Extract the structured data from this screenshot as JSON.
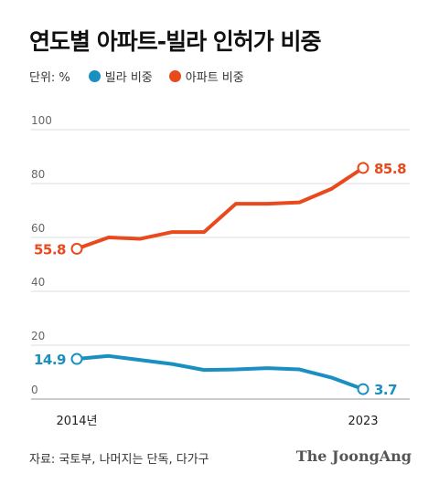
{
  "title": "연도별 아파트-빌라 인허가 비중",
  "unit_label": "단위: %",
  "source": "자료: 국토부, 나머지는 단독, 다가구",
  "brand": "The JoongAng",
  "colors": {
    "villa": "#1a8fc1",
    "apartment": "#e8491d"
  },
  "chart_data": {
    "type": "line",
    "x": [
      2014,
      2015,
      2016,
      2017,
      2018,
      2019,
      2020,
      2021,
      2022,
      2023
    ],
    "x_tick_labels": [
      {
        "x": 2014,
        "label": "2014년"
      },
      {
        "x": 2023,
        "label": "2023"
      }
    ],
    "yticks": [
      0,
      20,
      40,
      60,
      80,
      100
    ],
    "ylim": [
      0,
      100
    ],
    "xlabel": "",
    "ylabel": "",
    "legend_position": "top-left",
    "grid": true,
    "series": [
      {
        "name": "빌라 비중",
        "key": "villa",
        "values": [
          14.9,
          16.0,
          14.5,
          13.0,
          10.8,
          11.0,
          11.5,
          11.0,
          8.0,
          3.7
        ],
        "end_labels": [
          "14.9",
          "3.7"
        ]
      },
      {
        "name": "아파트 비중",
        "key": "apartment",
        "values": [
          55.8,
          60.0,
          59.5,
          62.0,
          62.0,
          72.5,
          72.5,
          73.0,
          78.0,
          85.8
        ],
        "end_labels": [
          "55.8",
          "85.8"
        ]
      }
    ]
  }
}
